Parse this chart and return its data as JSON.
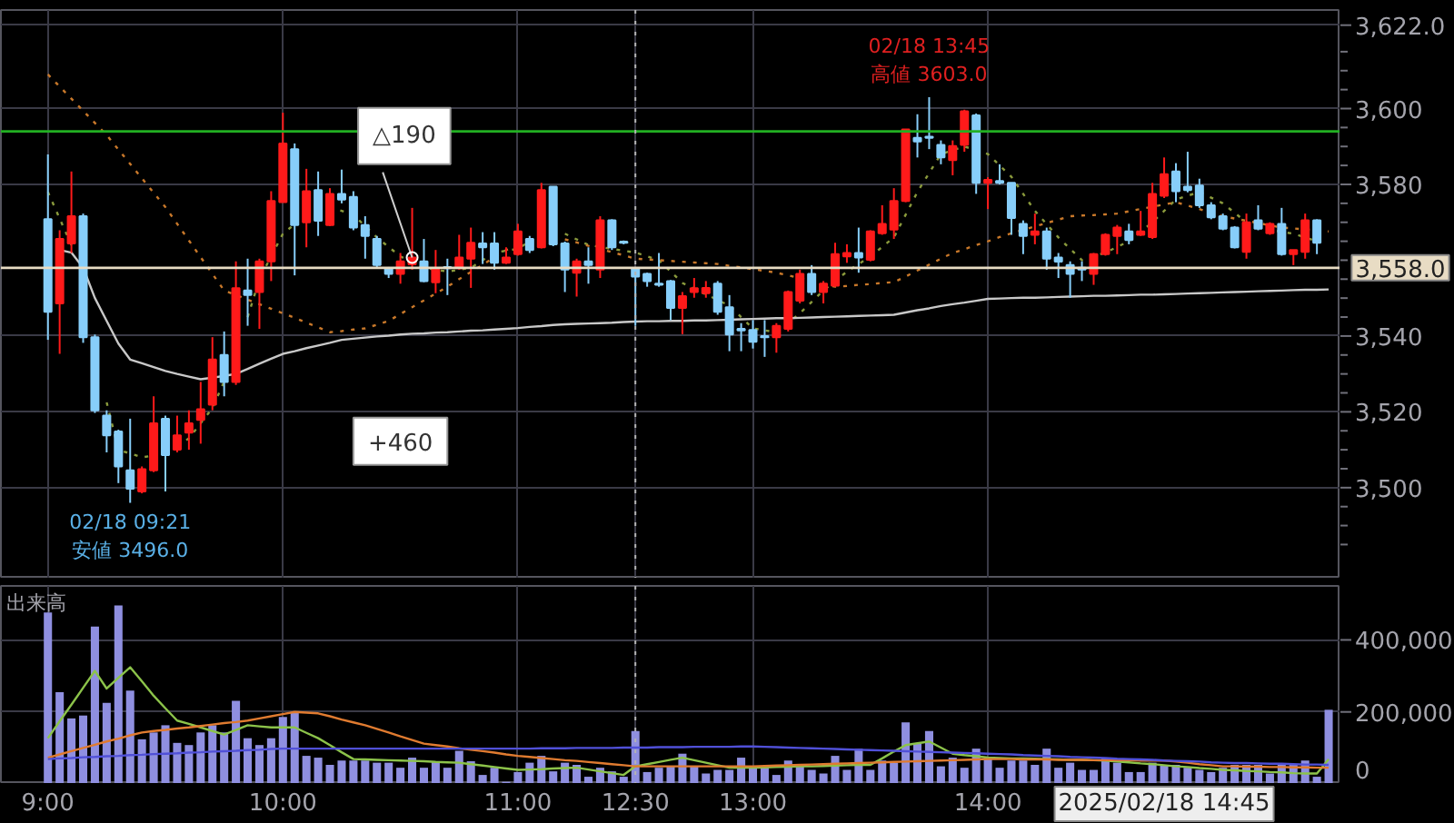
{
  "chart_data": [
    {
      "type": "candlestick",
      "categories": [
        "9:00",
        null,
        null,
        null,
        null,
        null,
        null,
        null,
        null,
        null,
        null,
        null,
        null,
        null,
        null,
        null,
        null,
        null,
        null,
        null,
        "10:00",
        null,
        null,
        null,
        null,
        null,
        null,
        null,
        null,
        null,
        null,
        null,
        null,
        null,
        null,
        null,
        null,
        null,
        null,
        null,
        "11:00",
        null,
        null,
        null,
        null,
        null,
        null,
        null,
        null,
        null,
        "12:30",
        null,
        null,
        null,
        null,
        null,
        null,
        null,
        null,
        null,
        "13:00",
        null,
        null,
        null,
        null,
        null,
        null,
        null,
        null,
        null,
        null,
        null,
        null,
        null,
        null,
        null,
        null,
        null,
        null,
        null,
        "14:00",
        null,
        null,
        null,
        null,
        null,
        null,
        null,
        null,
        null,
        null,
        null,
        null,
        null,
        null,
        null,
        null,
        null,
        null,
        null,
        null,
        null,
        null,
        null,
        null,
        null,
        null,
        null,
        null,
        null
      ],
      "ohlc": [
        [
          3570.8,
          3587.9,
          3539.0,
          3546.4
        ],
        [
          3548.6,
          3567.9,
          3535.3,
          3565.6
        ],
        [
          3564.4,
          3583.4,
          3561.9,
          3571.6
        ],
        [
          3571.6,
          3572.3,
          3538.2,
          3539.7
        ],
        [
          3539.7,
          3540.4,
          3519.7,
          3520.4
        ],
        [
          3519.0,
          3520.4,
          3509.3,
          3513.8
        ],
        [
          3514.8,
          3515.3,
          3501.2,
          3505.6
        ],
        [
          3504.6,
          3518.2,
          3496.0,
          3499.7
        ],
        [
          3499.0,
          3505.6,
          3498.5,
          3504.9
        ],
        [
          3504.6,
          3524.1,
          3504.1,
          3517.0
        ],
        [
          3518.2,
          3519.0,
          3499.0,
          3508.6
        ],
        [
          3510.0,
          3519.0,
          3509.3,
          3513.8
        ],
        [
          3514.5,
          3520.4,
          3510.0,
          3517.0
        ],
        [
          3517.9,
          3527.9,
          3511.6,
          3520.7
        ],
        [
          3521.9,
          3539.7,
          3520.4,
          3533.8
        ],
        [
          3535.0,
          3541.2,
          3524.1,
          3527.9
        ],
        [
          3527.9,
          3559.7,
          3527.1,
          3552.6
        ],
        [
          3552.0,
          3560.4,
          3542.7,
          3550.8
        ],
        [
          3551.6,
          3560.4,
          3541.9,
          3559.7
        ],
        [
          3559.7,
          3578.2,
          3554.5,
          3575.6
        ],
        [
          3575.3,
          3598.9,
          3575.3,
          3590.8
        ],
        [
          3589.3,
          3590.8,
          3556.0,
          3569.3
        ],
        [
          3570.0,
          3584.1,
          3563.4,
          3578.2
        ],
        [
          3578.5,
          3583.4,
          3566.4,
          3570.4
        ],
        [
          3569.3,
          3579.0,
          3569.0,
          3577.5
        ],
        [
          3577.5,
          3583.9,
          3575.0,
          3576.0
        ],
        [
          3576.7,
          3578.2,
          3567.9,
          3568.6
        ],
        [
          3569.3,
          3571.6,
          3560.4,
          3566.4
        ],
        [
          3565.6,
          3566.4,
          3558.2,
          3558.7
        ],
        [
          3557.9,
          3558.2,
          3555.3,
          3556.4
        ],
        [
          3556.4,
          3561.9,
          3553.8,
          3559.7
        ],
        [
          3558.9,
          3573.8,
          3557.5,
          3560.7
        ],
        [
          3559.7,
          3565.6,
          3554.2,
          3554.5
        ],
        [
          3554.2,
          3562.7,
          3551.3,
          3557.5
        ],
        [
          3558.2,
          3560.4,
          3550.8,
          3557.9
        ],
        [
          3557.9,
          3566.7,
          3557.5,
          3560.7
        ],
        [
          3560.4,
          3568.6,
          3552.7,
          3564.6
        ],
        [
          3564.4,
          3567.4,
          3559.0,
          3563.4
        ],
        [
          3564.4,
          3567.4,
          3557.5,
          3559.3
        ],
        [
          3559.3,
          3563.4,
          3559.0,
          3560.7
        ],
        [
          3561.6,
          3569.6,
          3561.2,
          3567.6
        ],
        [
          3565.6,
          3566.4,
          3561.9,
          3562.7
        ],
        [
          3563.4,
          3580.4,
          3563.1,
          3578.5
        ],
        [
          3579.4,
          3579.4,
          3563.7,
          3564.2
        ],
        [
          3564.4,
          3564.9,
          3551.6,
          3557.5
        ],
        [
          3556.7,
          3560.4,
          3550.4,
          3559.7
        ],
        [
          3559.7,
          3563.4,
          3553.8,
          3558.7
        ],
        [
          3557.5,
          3571.6,
          3555.3,
          3570.5
        ],
        [
          3570.5,
          3570.8,
          3562.7,
          3563.4
        ],
        [
          3564.9,
          3565.2,
          3564.2,
          3564.6
        ],
        [
          3557.8,
          3557.8,
          3542.7,
          3555.7
        ],
        [
          3556.4,
          3556.7,
          3553.0,
          3554.5
        ],
        [
          3553.8,
          3561.9,
          3553.0,
          3553.5
        ],
        [
          3554.5,
          3554.8,
          3544.2,
          3547.4
        ],
        [
          3547.4,
          3551.6,
          3540.5,
          3550.5
        ],
        [
          3551.6,
          3555.3,
          3550.1,
          3552.6
        ],
        [
          3551.3,
          3554.5,
          3550.1,
          3552.7
        ],
        [
          3553.8,
          3554.5,
          3545.6,
          3546.4
        ],
        [
          3547.6,
          3550.8,
          3536.0,
          3540.4
        ],
        [
          3541.9,
          3543.4,
          3536.0,
          3541.5
        ],
        [
          3541.6,
          3544.2,
          3536.7,
          3538.5
        ],
        [
          3540.0,
          3544.2,
          3534.5,
          3539.7
        ],
        [
          3539.7,
          3543.4,
          3535.6,
          3542.7
        ],
        [
          3541.9,
          3552.0,
          3541.2,
          3551.6
        ],
        [
          3549.3,
          3557.5,
          3548.6,
          3556.4
        ],
        [
          3556.4,
          3558.7,
          3550.8,
          3551.6
        ],
        [
          3551.6,
          3554.5,
          3548.6,
          3553.8
        ],
        [
          3553.3,
          3564.6,
          3553.0,
          3561.6
        ],
        [
          3561.0,
          3564.2,
          3559.3,
          3561.9
        ],
        [
          3561.9,
          3568.6,
          3556.7,
          3560.7
        ],
        [
          3560.1,
          3567.9,
          3559.7,
          3567.6
        ],
        [
          3567.1,
          3574.5,
          3566.7,
          3569.6
        ],
        [
          3568.1,
          3579.0,
          3565.6,
          3575.6
        ],
        [
          3575.6,
          3594.5,
          3575.3,
          3594.5
        ],
        [
          3592.3,
          3598.5,
          3587.1,
          3591.3
        ],
        [
          3592.6,
          3603.0,
          3589.3,
          3592.3
        ],
        [
          3590.4,
          3591.6,
          3585.3,
          3587.1
        ],
        [
          3586.4,
          3591.6,
          3582.4,
          3590.1
        ],
        [
          3590.4,
          3599.7,
          3588.6,
          3599.3
        ],
        [
          3598.2,
          3598.7,
          3577.5,
          3580.4
        ],
        [
          3580.4,
          3581.9,
          3573.5,
          3581.2
        ],
        [
          3580.9,
          3585.3,
          3580.0,
          3580.4
        ],
        [
          3580.4,
          3580.4,
          3566.7,
          3571.1
        ],
        [
          3569.6,
          3570.5,
          3561.6,
          3566.4
        ],
        [
          3566.7,
          3572.3,
          3564.2,
          3567.6
        ],
        [
          3567.6,
          3568.6,
          3557.5,
          3560.4
        ],
        [
          3560.7,
          3561.9,
          3555.3,
          3559.6
        ],
        [
          3558.7,
          3559.7,
          3550.1,
          3556.4
        ],
        [
          3558.0,
          3559.7,
          3554.5,
          3557.5
        ],
        [
          3556.4,
          3561.9,
          3553.5,
          3561.6
        ],
        [
          3561.6,
          3567.1,
          3561.2,
          3566.7
        ],
        [
          3566.4,
          3569.3,
          3561.6,
          3568.6
        ],
        [
          3567.6,
          3569.6,
          3564.2,
          3565.3
        ],
        [
          3566.7,
          3573.0,
          3566.4,
          3567.6
        ],
        [
          3566.1,
          3580.4,
          3565.6,
          3577.5
        ],
        [
          3577.0,
          3587.1,
          3576.4,
          3582.7
        ],
        [
          3583.4,
          3585.6,
          3575.3,
          3578.2
        ],
        [
          3579.4,
          3588.6,
          3577.9,
          3578.5
        ],
        [
          3579.7,
          3581.5,
          3573.8,
          3574.5
        ],
        [
          3574.5,
          3575.3,
          3570.8,
          3571.3
        ],
        [
          3571.6,
          3572.3,
          3567.9,
          3568.3
        ],
        [
          3568.6,
          3569.0,
          3563.1,
          3563.4
        ],
        [
          3562.2,
          3572.3,
          3560.4,
          3570.0
        ],
        [
          3570.5,
          3574.5,
          3567.9,
          3568.3
        ],
        [
          3567.1,
          3570.0,
          3566.7,
          3569.6
        ],
        [
          3569.6,
          3573.8,
          3561.2,
          3561.6
        ],
        [
          3561.6,
          3562.7,
          3558.7,
          3562.7
        ],
        [
          3562.2,
          3572.3,
          3560.4,
          3570.5
        ],
        [
          3570.5,
          3570.8,
          3561.6,
          3564.6
        ],
        null
      ],
      "colors": [
        "#87cefa",
        "#ff1a1a",
        "#ff1a1a",
        "#87cefa",
        "#87cefa",
        "#87cefa",
        "#87cefa",
        "#87cefa",
        "#ff1a1a",
        "#ff1a1a",
        "#87cefa",
        "#ff1a1a",
        "#ff1a1a",
        "#ff1a1a",
        "#ff1a1a",
        "#87cefa",
        "#ff1a1a",
        "#87cefa",
        "#ff1a1a",
        "#ff1a1a",
        "#ff1a1a",
        "#87cefa",
        "#ff1a1a",
        "#87cefa",
        "#ff1a1a",
        "#87cefa",
        "#87cefa",
        "#87cefa",
        "#87cefa",
        "#87cefa",
        "#ff1a1a",
        "#ff1a1a",
        "#87cefa",
        "#ff1a1a",
        "#87cefa",
        "#ff1a1a",
        "#ff1a1a",
        "#87cefa",
        "#87cefa",
        "#ff1a1a",
        "#ff1a1a",
        "#87cefa",
        "#ff1a1a",
        "#87cefa",
        "#87cefa",
        "#ff1a1a",
        "#87cefa",
        "#ff1a1a",
        "#87cefa",
        "#87cefa",
        "#87cefa",
        "#87cefa",
        "#87cefa",
        "#87cefa",
        "#ff1a1a",
        "#ff1a1a",
        "#ff1a1a",
        "#87cefa",
        "#87cefa",
        "#87cefa",
        "#87cefa",
        "#87cefa",
        "#ff1a1a",
        "#ff1a1a",
        "#ff1a1a",
        "#87cefa",
        "#ff1a1a",
        "#ff1a1a",
        "#ff1a1a",
        "#87cefa",
        "#ff1a1a",
        "#ff1a1a",
        "#ff1a1a",
        "#ff1a1a",
        "#87cefa",
        "#87cefa",
        "#87cefa",
        "#ff1a1a",
        "#ff1a1a",
        "#87cefa",
        "#ff1a1a",
        "#87cefa",
        "#87cefa",
        "#87cefa",
        "#ff1a1a",
        "#87cefa",
        "#87cefa",
        "#87cefa",
        "#87cefa",
        "#ff1a1a",
        "#ff1a1a",
        "#ff1a1a",
        "#87cefa",
        "#ff1a1a",
        "#ff1a1a",
        "#ff1a1a",
        "#87cefa",
        "#87cefa",
        "#87cefa",
        "#87cefa",
        "#87cefa",
        "#87cefa",
        "#ff1a1a",
        "#87cefa",
        "#ff1a1a",
        "#87cefa",
        "#ff1a1a",
        "#ff1a1a",
        "#87cefa",
        "#87cefa"
      ],
      "series": [
        {
          "type": "line",
          "color": "#8a9a3c",
          "line_style": "dotted",
          "values": [
            3578,
            3571,
            3564,
            null,
            null,
            3522.5,
            3510,
            3509,
            3508,
            3508.5,
            null,
            3511,
            3513,
            3517,
            3521,
            3528,
            null,
            3545,
            3555,
            3561,
            3567,
            3569.5,
            null,
            null,
            3574,
            3573,
            3572,
            3569,
            3566,
            3563.5,
            3561,
            3559.5,
            3558,
            3557.5,
            3557,
            3557.5,
            3558,
            3560,
            3562,
            3562.5,
            3563,
            3565,
            null,
            null,
            3567,
            3565.5,
            3564,
            3563.5,
            3563,
            3562.5,
            3562,
            3561,
            3560,
            3557,
            3554,
            3552.5,
            3551,
            3549.5,
            3548,
            3545,
            3542,
            3541.5,
            3541,
            3543.5,
            3546,
            3549,
            3552,
            3554.5,
            3557,
            3559,
            3561,
            3563.5,
            3566,
            3572,
            3578,
            3583,
            3588,
            3589,
            3590,
            3589,
            3588,
            3585,
            3582,
            3577.5,
            3573,
            3569.5,
            3566,
            3563,
            3560,
            3561,
            3562,
            3563.5,
            3565,
            3567.5,
            3570,
            3573,
            3576,
            3577,
            3578,
            3576.5,
            3575,
            3572.5,
            3570,
            3569,
            3568,
            3567.5,
            3567,
            3566,
            3565,
            null
          ]
        },
        {
          "type": "line",
          "color": "#c8782a",
          "line_style": "dotted",
          "values": [
            3609,
            3605.8,
            3602.6,
            3599.4,
            3596.2,
            3593,
            3589.2,
            3585.4,
            3581.6,
            3577.8,
            3574,
            3569.6,
            3565.2,
            3560.8,
            3556.4,
            3552,
            3550.8,
            3549.6,
            3548.4,
            3547.2,
            3546,
            3544.8,
            3543.5,
            3542.3,
            3541,
            3541.3,
            3541.7,
            3542,
            3543,
            3544,
            3545.8,
            3547.6,
            3549.4,
            3551.2,
            3553,
            3555,
            3556.9,
            3558.8,
            3560.8,
            3562.7,
            3563.6,
            3564.5,
            null,
            null,
            3565.5,
            3564.7,
            3563.8,
            3563,
            3562.1,
            3561.3,
            3560.4,
            3560.2,
            3560,
            3559.8,
            3559.6,
            3559.4,
            3559.2,
            3559,
            3558.5,
            3558.1,
            3557.6,
            3557.2,
            3556.7,
            3556,
            3555.2,
            3554.5,
            3553.7,
            3553,
            3553.2,
            3553.5,
            3553.7,
            3554,
            3554.2,
            3555.7,
            3557.3,
            3558.8,
            3560.4,
            3561.9,
            3562.9,
            3564,
            3565,
            3566.1,
            3567.1,
            3568,
            3568.9,
            3569.8,
            3570.7,
            3571.6,
            3571.8,
            3571.9,
            3572.1,
            3572.3,
            3572.9,
            3573.5,
            3574.1,
            3574.7,
            3575.3,
            3574.4,
            3573.5,
            3572.5,
            3571.6,
            3571,
            3570.4,
            3569.8,
            3569.2,
            3568.6,
            3568.4,
            3568.1,
            3567.9,
            3567.6
          ]
        },
        {
          "type": "line",
          "color": "#c8c8c8",
          "values": [
            null,
            3562.7,
            3562,
            3558,
            3550,
            3544,
            3538,
            3533.8,
            3532.8,
            3531.8,
            3530.8,
            3530,
            3529.3,
            3528.6,
            3529,
            3529.5,
            3530,
            3531.3,
            3532.7,
            3534,
            3535.3,
            3536,
            3536.8,
            3537.5,
            3538.2,
            3539,
            3539.3,
            3539.6,
            3539.9,
            3540.1,
            3540.4,
            3540.6,
            3540.7,
            3540.9,
            3541,
            3541.2,
            3541.4,
            3541.5,
            3541.7,
            3541.9,
            3542.1,
            3542.4,
            3542.6,
            3542.9,
            3543.1,
            3543.2,
            3543.3,
            3543.4,
            3543.5,
            3543.7,
            3543.8,
            3543.9,
            3543.9,
            3544,
            3544,
            3544.1,
            3544.1,
            3544.2,
            3544.3,
            3544.4,
            3544.5,
            3544.6,
            3544.7,
            3544.7,
            3544.8,
            3544.9,
            3545,
            3545.1,
            3545.2,
            3545.3,
            3545.4,
            3545.5,
            3545.6,
            3546.2,
            3546.8,
            3547.3,
            3547.9,
            3548.4,
            3548.8,
            3549.3,
            3549.8,
            3549.9,
            3550,
            3550.1,
            3550.1,
            3550.2,
            3550.3,
            3550.4,
            3550.5,
            3550.6,
            3550.6,
            3550.7,
            3550.8,
            3550.9,
            3550.9,
            3551,
            3551.1,
            3551.2,
            3551.3,
            3551.4,
            3551.5,
            3551.6,
            3551.7,
            3551.8,
            3551.9,
            3552,
            3552.1,
            3552.2,
            3552.2,
            3552.3
          ]
        }
      ],
      "ylim": [
        3476,
        3626
      ],
      "yticks": [
        {
          "value": 3485,
          "label": null
        },
        {
          "value": 3490,
          "label": null
        },
        {
          "value": 3495,
          "label": null
        },
        {
          "value": 3500,
          "label": "3,500"
        },
        {
          "value": 3505,
          "label": null
        },
        {
          "value": 3510,
          "label": null
        },
        {
          "value": 3515,
          "label": null
        },
        {
          "value": 3520,
          "label": "3,520"
        },
        {
          "value": 3525,
          "label": null
        },
        {
          "value": 3530,
          "label": null
        },
        {
          "value": 3535,
          "label": null
        },
        {
          "value": 3540,
          "label": "3,540"
        },
        {
          "value": 3545,
          "label": null
        },
        {
          "value": 3550,
          "label": null
        },
        {
          "value": 3555,
          "label": null
        },
        {
          "value": 3560,
          "label": null
        },
        {
          "value": 3565,
          "label": null
        },
        {
          "value": 3570,
          "label": null
        },
        {
          "value": 3575,
          "label": null
        },
        {
          "value": 3580,
          "label": "3,580"
        },
        {
          "value": 3585,
          "label": null
        },
        {
          "value": 3590,
          "label": null
        },
        {
          "value": 3595,
          "label": null
        },
        {
          "value": 3600,
          "label": "3,600"
        },
        {
          "value": 3605,
          "label": null
        },
        {
          "value": 3610,
          "label": null
        },
        {
          "value": 3615,
          "label": null
        },
        {
          "value": 3622,
          "label": "3,622.0"
        }
      ],
      "tick_labels": "y",
      "grid": true,
      "ref_lines": [
        {
          "axis": "y",
          "value": 3594,
          "color": "#22b022"
        },
        {
          "axis": "y",
          "value": 3558,
          "label": "3,558.0",
          "color": "#e8dcc4"
        },
        {
          "axis": "x",
          "value": "12:30",
          "color": "#b4b4b4",
          "line_style": "dotted"
        }
      ],
      "annotations": [
        {
          "text": "02/18 09:21\n安値 3496.0",
          "y": 3496.0
        },
        {
          "text": "02/18 13:45\n高値 3603.0",
          "y": 3603.0
        },
        {
          "text": "△190",
          "y": 3560.7
        },
        "+460"
      ]
    },
    {
      "type": "bar",
      "title": "出来高",
      "categories": [
        "9:00",
        null,
        null,
        null,
        null,
        null,
        null,
        null,
        null,
        null,
        null,
        null,
        null,
        null,
        null,
        null,
        null,
        null,
        null,
        null,
        "10:00",
        null,
        null,
        null,
        null,
        null,
        null,
        null,
        null,
        null,
        null,
        null,
        null,
        null,
        null,
        null,
        null,
        null,
        null,
        null,
        "11:00",
        null,
        null,
        null,
        null,
        null,
        null,
        null,
        null,
        null,
        "12:30",
        null,
        null,
        null,
        null,
        null,
        null,
        null,
        null,
        null,
        "13:00",
        null,
        null,
        null,
        null,
        null,
        null,
        null,
        null,
        null,
        null,
        null,
        null,
        null,
        null,
        null,
        null,
        null,
        null,
        null,
        "14:00",
        null,
        null,
        null,
        null,
        null,
        null,
        null,
        null,
        null,
        null,
        null,
        null,
        null,
        null,
        null,
        null,
        null,
        null,
        null,
        null,
        null,
        null,
        null,
        null,
        null,
        null,
        null,
        null,
        null
      ],
      "series": [
        {
          "type": "bar",
          "color": "#8f8fe0",
          "values": [
            476000,
            255000,
            182000,
            190000,
            437000,
            225000,
            496000,
            259000,
            124000,
            143000,
            163000,
            114000,
            108000,
            143000,
            163000,
            143000,
            231000,
            127000,
            108000,
            127000,
            186000,
            200000,
            78000,
            73000,
            53000,
            65000,
            65000,
            65000,
            59000,
            59000,
            45000,
            73000,
            45000,
            63000,
            45000,
            92000,
            63000,
            25000,
            45000,
            6000,
            33000,
            59000,
            78000,
            35000,
            59000,
            53000,
            20000,
            45000,
            35000,
            20000,
            147000,
            33000,
            45000,
            49000,
            84000,
            49000,
            29000,
            39000,
            39000,
            73000,
            45000,
            45000,
            25000,
            65000,
            53000,
            39000,
            29000,
            78000,
            39000,
            98000,
            39000,
            65000,
            59000,
            171000,
            112000,
            147000,
            49000,
            73000,
            45000,
            98000,
            73000,
            45000,
            65000,
            65000,
            53000,
            98000,
            45000,
            59000,
            39000,
            39000,
            73000,
            59000,
            33000,
            33000,
            59000,
            53000,
            53000,
            45000,
            39000,
            33000,
            45000,
            53000,
            53000,
            53000,
            29000,
            53000,
            53000,
            65000,
            20000,
            206000
          ]
        },
        {
          "type": "line",
          "color": "#8cc34a",
          "values": [
            127000,
            174000,
            220000,
            267000,
            314000,
            265000,
            295000,
            324000,
            285000,
            245000,
            210000,
            176000,
            167000,
            157000,
            147000,
            137000,
            150000,
            163000,
            160000,
            157000,
            157000,
            157000,
            142000,
            127000,
            108000,
            88000,
            69000,
            68000,
            67000,
            66000,
            65000,
            64000,
            63000,
            61000,
            60000,
            59000,
            55000,
            51000,
            47000,
            43000,
            39000,
            40000,
            41000,
            43000,
            44000,
            45000,
            40000,
            35000,
            30000,
            25000,
            49000,
            55000,
            61000,
            67000,
            73000,
            66000,
            59000,
            52000,
            45000,
            45000,
            45000,
            46000,
            47000,
            48000,
            49000,
            49000,
            50000,
            51000,
            52000,
            53000,
            53000,
            71000,
            90000,
            108000,
            113000,
            118000,
            101000,
            84000,
            80000,
            77000,
            73000,
            72000,
            71000,
            71000,
            70000,
            69000,
            68000,
            67000,
            67000,
            66000,
            65000,
            62000,
            60000,
            57000,
            55000,
            52000,
            49000,
            47000,
            44000,
            42000,
            39000,
            38000,
            36000,
            35000,
            33000,
            32000,
            30000,
            29000,
            29000,
            69000
          ]
        },
        {
          "type": "line",
          "color": "#e07b30",
          "values": [
            73000,
            82000,
            91000,
            100000,
            109000,
            118000,
            126000,
            135000,
            143000,
            147000,
            150000,
            154000,
            157000,
            161000,
            165000,
            169000,
            172000,
            176000,
            182000,
            188000,
            194000,
            200000,
            198000,
            196000,
            188000,
            179000,
            171000,
            163000,
            153000,
            143000,
            132000,
            122000,
            112000,
            108000,
            104000,
            99000,
            95000,
            91000,
            87000,
            82000,
            78000,
            75000,
            72000,
            69000,
            66000,
            64000,
            61000,
            58000,
            55000,
            52000,
            49000,
            49000,
            49000,
            49000,
            49000,
            49000,
            49000,
            49000,
            49000,
            49000,
            49000,
            50000,
            51000,
            52000,
            53000,
            54000,
            55000,
            56000,
            57000,
            58000,
            59000,
            60000,
            61000,
            62000,
            63000,
            64000,
            65000,
            66000,
            67000,
            68000,
            69000,
            69000,
            69000,
            68000,
            68000,
            68000,
            67000,
            67000,
            67000,
            66000,
            66000,
            66000,
            66000,
            65000,
            65000,
            65000,
            62000,
            59000,
            55000,
            52000,
            49000,
            49000,
            48000,
            48000,
            47000,
            47000,
            46000,
            46000,
            45000,
            45000
          ]
        },
        {
          "type": "line",
          "color": "#5050d8",
          "values": [
            69000,
            71000,
            72000,
            74000,
            75000,
            77000,
            78000,
            80000,
            81000,
            83000,
            84000,
            85000,
            87000,
            88000,
            90000,
            91000,
            92000,
            94000,
            95000,
            97000,
            98000,
            98000,
            98000,
            98000,
            98000,
            98000,
            98000,
            98000,
            98000,
            98000,
            98000,
            98000,
            98000,
            98000,
            98000,
            98000,
            98000,
            98000,
            98000,
            98000,
            98000,
            98000,
            99000,
            99000,
            99000,
            100000,
            100000,
            100000,
            100000,
            101000,
            101000,
            101000,
            102000,
            102000,
            102000,
            103000,
            103000,
            103000,
            103000,
            104000,
            104000,
            103000,
            102000,
            101000,
            100000,
            99000,
            98000,
            97000,
            96000,
            95000,
            94000,
            93000,
            92000,
            91000,
            90000,
            89000,
            88000,
            87000,
            86000,
            85000,
            84000,
            83000,
            82000,
            80000,
            79000,
            78000,
            77000,
            75000,
            74000,
            73000,
            72000,
            70000,
            69000,
            68000,
            67000,
            65000,
            64000,
            63000,
            62000,
            60000,
            59000,
            58000,
            58000,
            57000,
            56000,
            56000,
            55000,
            54000,
            54000,
            53000
          ]
        }
      ],
      "ylim": [
        0,
        550000
      ],
      "yticks": [
        0,
        {
          "value": 200000,
          "label": "200,000"
        },
        {
          "value": 400000,
          "label": "400,000"
        }
      ],
      "grid": true,
      "ref_lines": [
        {
          "axis": "x",
          "value": "12:30",
          "color": "#b4b4b4",
          "line_style": "dotted"
        }
      ],
      "annotations": [
        "2025/02/18 14:45"
      ]
    }
  ]
}
